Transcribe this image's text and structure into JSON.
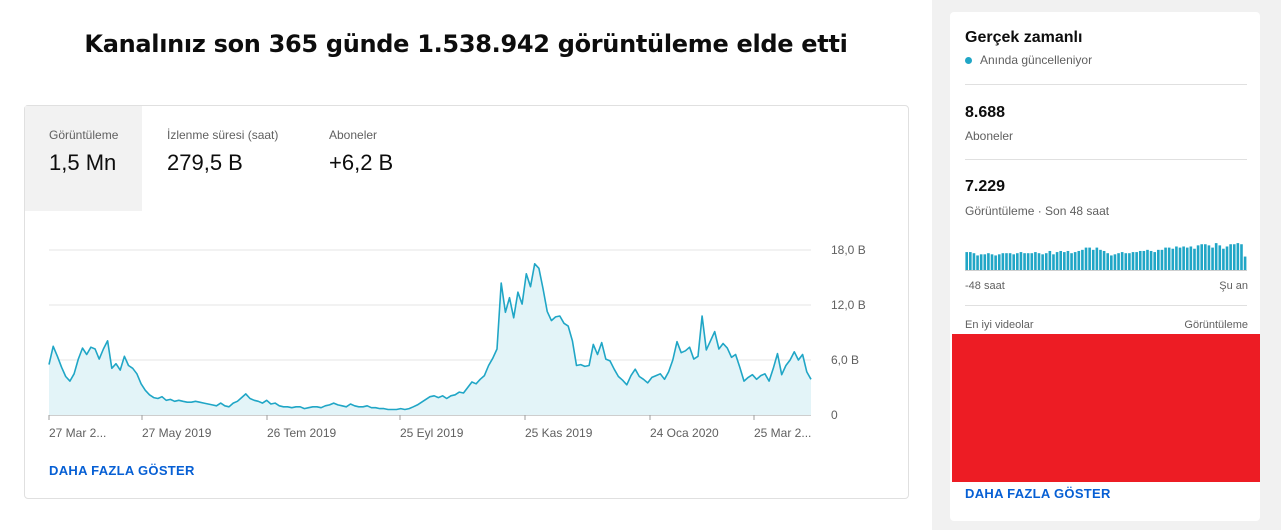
{
  "header": {
    "title": "Kanalınız son 365 günde 1.538.942 görüntüleme elde etti"
  },
  "tabs": [
    {
      "label": "Görüntüleme",
      "value": "1,5 Mn"
    },
    {
      "label": "İzlenme süresi (saat)",
      "value": "279,5 B"
    },
    {
      "label": "Aboneler",
      "value": "+6,2 B"
    }
  ],
  "show_more": "DAHA FAZLA GÖSTER",
  "chart_data": {
    "type": "area",
    "series": [
      {
        "values": [
          5.5,
          7.5,
          6.4,
          5.2,
          4.2,
          3.7,
          4.5,
          6.1,
          7.3,
          6.6,
          7.4,
          7.2,
          6.1,
          7.2,
          8.1,
          5.1,
          5.6,
          4.9,
          6.4,
          5.4,
          5.1,
          4.5,
          3.4,
          2.7,
          2.2,
          1.9,
          1.8,
          2.0,
          1.6,
          1.7,
          1.5,
          1.6,
          1.5,
          1.4,
          1.4,
          1.5,
          1.4,
          1.3,
          1.2,
          1.1,
          1.0,
          1.3,
          1.0,
          0.9,
          1.3,
          1.5,
          1.9,
          2.3,
          1.8,
          1.6,
          1.5,
          1.3,
          1.6,
          1.2,
          1.3,
          1.0,
          0.9,
          0.9,
          0.8,
          0.9,
          0.9,
          0.7,
          0.8,
          0.9,
          0.9,
          0.8,
          1.0,
          1.1,
          1.3,
          1.1,
          1.0,
          0.9,
          1.2,
          1.0,
          0.9,
          0.9,
          1.0,
          0.8,
          0.8,
          0.7,
          0.7,
          0.6,
          0.6,
          0.6,
          0.7,
          0.6,
          0.7,
          0.9,
          1.1,
          1.4,
          1.7,
          2.0,
          2.1,
          1.9,
          2.1,
          1.8,
          2.1,
          2.2,
          2.5,
          2.4,
          3.0,
          3.6,
          3.4,
          3.9,
          4.3,
          5.4,
          6.2,
          7.2,
          14.4,
          11.2,
          12.8,
          10.6,
          13.4,
          12.1,
          15.4,
          14.0,
          16.5,
          16.0,
          13.8,
          11.3,
          10.3,
          10.7,
          10.8,
          10.0,
          9.7,
          8.1,
          5.4,
          5.5,
          5.3,
          5.4,
          7.7,
          6.6,
          7.9,
          6.1,
          5.9,
          5.0,
          4.2,
          3.8,
          3.3,
          4.3,
          5.0,
          4.2,
          3.9,
          3.5,
          4.1,
          4.3,
          4.5,
          3.9,
          4.7,
          6.0,
          8.0,
          6.8,
          7.0,
          7.4,
          6.1,
          6.4,
          10.8,
          7.1,
          8.1,
          9.1,
          7.2,
          7.8,
          7.3,
          6.3,
          6.6,
          5.2,
          3.7,
          4.1,
          4.4,
          3.9,
          4.3,
          4.5,
          3.7,
          5.1,
          6.7,
          4.4,
          5.4,
          6.0,
          6.9,
          6.0,
          6.6,
          4.7,
          3.9
        ],
        "color": "#20a6c6"
      }
    ],
    "x_ticks": [
      "27 Mar 2...",
      "27 May 2019",
      "26 Tem 2019",
      "25 Eyl 2019",
      "25 Kas 2019",
      "24 Oca 2020",
      "25 Mar 2..."
    ],
    "y_ticks": [
      "0",
      "6,0 B",
      "12,0 B",
      "18,0 B"
    ],
    "ylim": [
      0,
      18
    ],
    "grid": true
  },
  "sidebar": {
    "title": "Gerçek zamanlı",
    "subtitle": "Anında güncelleniyor",
    "subscribers_value": "8.688",
    "subscribers_label": "Aboneler",
    "views_value": "7.229",
    "views_label": "Görüntüleme · Son 48 saat",
    "mini_chart": {
      "type": "bar",
      "values": [
        16,
        16,
        15,
        13,
        14,
        14,
        15,
        14,
        13,
        14,
        15,
        15,
        15,
        14,
        15,
        16,
        15,
        15,
        15,
        16,
        15,
        14,
        15,
        17,
        14,
        16,
        17,
        16,
        17,
        15,
        16,
        17,
        18,
        20,
        20,
        18,
        20,
        18,
        17,
        15,
        13,
        14,
        15,
        16,
        15,
        15,
        16,
        16,
        17,
        17,
        18,
        17,
        16,
        18,
        18,
        20,
        20,
        19,
        21,
        20,
        21,
        20,
        21,
        19,
        22,
        23,
        23,
        22,
        20,
        24,
        22,
        19,
        21,
        23,
        23,
        24,
        23,
        12
      ],
      "color": "#20a6c6"
    },
    "axis_left": "-48 saat",
    "axis_right": "Şu an",
    "top_videos_label": "En iyi videolar",
    "top_videos_metric": "Görüntüleme",
    "show_more": "DAHA FAZLA GÖSTER"
  }
}
